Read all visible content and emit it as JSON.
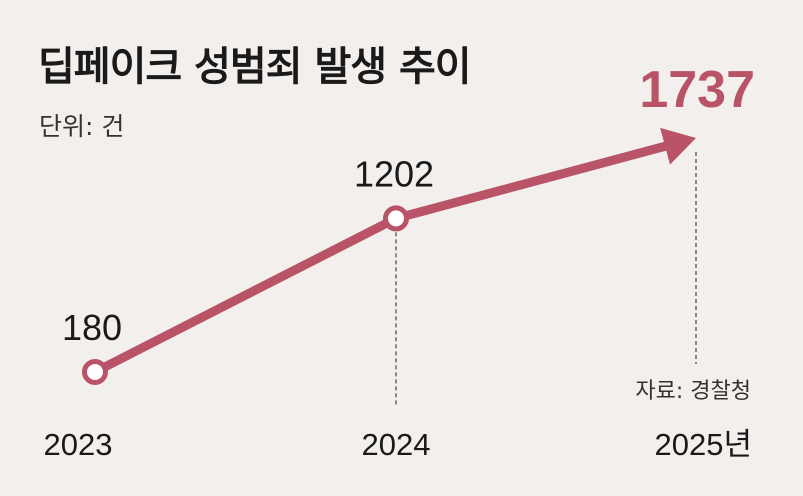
{
  "title": "딥페이크 성범죄 발생 추이",
  "unit": "단위: 건",
  "source": "자료: 경찰청",
  "colors": {
    "line": "#b85368",
    "highlight": "#b85368",
    "background": "#f2efed",
    "text": "#1a1a1a"
  },
  "chart_data": {
    "type": "line",
    "x": [
      "2023",
      "2024",
      "2025년"
    ],
    "values": [
      180,
      1202,
      1737
    ],
    "value_labels": [
      "180",
      "1202",
      "1737"
    ],
    "ylim": [
      0,
      1737
    ],
    "grid": false,
    "legend": "none",
    "highlight_last": true
  }
}
